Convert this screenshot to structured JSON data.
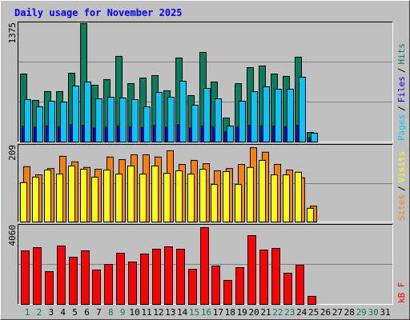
{
  "title": "Daily usage for November 2025",
  "chart_data": [
    {
      "type": "bar",
      "categories": [
        "1",
        "2",
        "3",
        "4",
        "5",
        "6",
        "7",
        "8",
        "9",
        "10",
        "11",
        "12",
        "13",
        "14",
        "15",
        "16",
        "17",
        "18",
        "19",
        "20",
        "21",
        "22",
        "23",
        "24",
        "25",
        "26",
        "27",
        "28",
        "29",
        "30",
        "31"
      ],
      "category_colors": [
        "#00805c",
        "#00805c",
        "#000000",
        "#000000",
        "#000000",
        "#000000",
        "#000000",
        "#00805c",
        "#00805c",
        "#000000",
        "#000000",
        "#000000",
        "#000000",
        "#000000",
        "#00805c",
        "#00805c",
        "#000000",
        "#000000",
        "#000000",
        "#000000",
        "#000000",
        "#00805c",
        "#00805c",
        "#000000",
        "#000000",
        "#000000",
        "#000000",
        "#000000",
        "#00805c",
        "#00805c",
        "#000000"
      ],
      "ylim": [
        0,
        1375
      ],
      "yticks": [
        1375
      ],
      "legend_separator": "/",
      "series": [
        {
          "name": "Pages",
          "color": "#00c8ff",
          "values": [
            486,
            403,
            467,
            458,
            642,
            688,
            495,
            513,
            504,
            486,
            403,
            568,
            513,
            697,
            422,
            614,
            495,
            183,
            467,
            577,
            633,
            605,
            605,
            743,
            101,
            null,
            null,
            null,
            null,
            null,
            null
          ]
        },
        {
          "name": "Files",
          "color": "#0000ff",
          "values": [
            180,
            170,
            185,
            175,
            200,
            190,
            160,
            170,
            185,
            175,
            165,
            190,
            170,
            200,
            160,
            185,
            175,
            120,
            170,
            190,
            185,
            180,
            175,
            190,
            50,
            null,
            null,
            null,
            null,
            null,
            null
          ]
        },
        {
          "name": "Hits",
          "color": "#00805c",
          "values": [
            779,
            477,
            578,
            578,
            788,
            1357,
            651,
            715,
            981,
            669,
            733,
            761,
            587,
            963,
            532,
            1027,
            688,
            275,
            669,
            853,
            871,
            779,
            752,
            972,
            110,
            null,
            null,
            null,
            null,
            null,
            null
          ]
        }
      ]
    },
    {
      "type": "bar",
      "ylim": [
        0,
        209
      ],
      "yticks": [
        209
      ],
      "legend_separator": "/",
      "series": [
        {
          "name": "Sites",
          "color": "#ff8000",
          "values": [
            149,
            127,
            144,
            177,
            162,
            147,
            142,
            175,
            168,
            181,
            181,
            175,
            192,
            155,
            166,
            157,
            138,
            144,
            155,
            200,
            188,
            155,
            140,
            119,
            43,
            null,
            null,
            null,
            null,
            null,
            null
          ]
        },
        {
          "name": "Visits",
          "color": "#ffff00",
          "values": [
            106,
            121,
            140,
            129,
            151,
            142,
            121,
            140,
            129,
            151,
            129,
            151,
            131,
            138,
            129,
            142,
            101,
            136,
            101,
            147,
            166,
            127,
            127,
            134,
            37,
            null,
            null,
            null,
            null,
            null,
            null
          ]
        }
      ]
    },
    {
      "type": "bar",
      "ylim": [
        0,
        4060
      ],
      "yticks": [
        4060
      ],
      "legend_separator": "/",
      "series": [
        {
          "name": "kB F",
          "color": "#ff0000",
          "values": [
            2720,
            2883,
            1665,
            2964,
            2395,
            2720,
            1746,
            2030,
            2598,
            2151,
            2558,
            2801,
            2923,
            2801,
            1786,
            3897,
            1949,
            1218,
            1868,
            3491,
            2761,
            2842,
            1583,
            1989,
            406,
            null,
            null,
            null,
            null,
            null,
            null
          ]
        }
      ]
    }
  ]
}
